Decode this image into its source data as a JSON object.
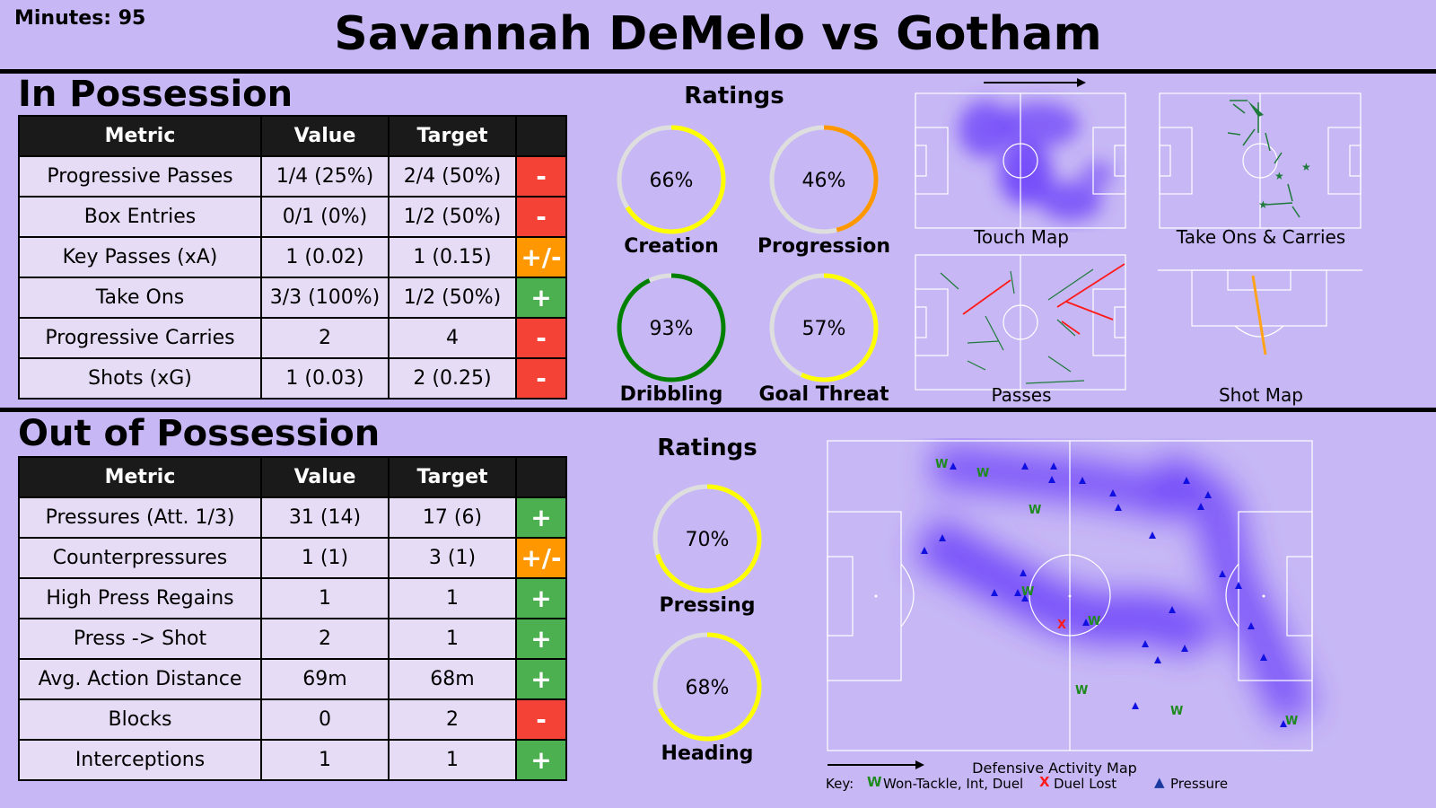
{
  "header": {
    "minutes": "Minutes: 95",
    "title": "Savannah DeMelo vs Gotham"
  },
  "colors": {
    "background": "#c7b8f5",
    "red": "#f44336",
    "orange": "#ff9800",
    "green": "#4caf50",
    "gauge_yellow": "#ffff00",
    "gauge_orange": "#ff9800",
    "gauge_green": "#008000",
    "heat": "#6a3dfa",
    "pressure_marker": "#1010e0",
    "won_marker": "#1e8a1e",
    "lost_marker": "#ff1a1a"
  },
  "in_possession": {
    "title": "In Possession",
    "headers": [
      "Metric",
      "Value",
      "Target",
      ""
    ],
    "rows": [
      {
        "metric": "Progressive Passes",
        "value": "1/4 (25%)",
        "target": "2/4 (50%)",
        "indicator": "-",
        "status": "red"
      },
      {
        "metric": "Box Entries",
        "value": "0/1 (0%)",
        "target": "1/2 (50%)",
        "indicator": "-",
        "status": "red"
      },
      {
        "metric": "Key Passes (xA)",
        "value": "1 (0.02)",
        "target": "1 (0.15)",
        "indicator": "+/-",
        "status": "orange"
      },
      {
        "metric": "Take Ons",
        "value": "3/3 (100%)",
        "target": "1/2 (50%)",
        "indicator": "+",
        "status": "green"
      },
      {
        "metric": "Progressive Carries",
        "value": "2",
        "target": "4",
        "indicator": "-",
        "status": "red"
      },
      {
        "metric": "Shots (xG)",
        "value": "1 (0.03)",
        "target": "2 (0.25)",
        "indicator": "-",
        "status": "red"
      }
    ],
    "ratings_title": "Ratings",
    "ratings": [
      {
        "label": "Creation",
        "value": "66%",
        "fraction": 0.66,
        "color": "#ffff00"
      },
      {
        "label": "Progression",
        "value": "46%",
        "fraction": 0.46,
        "color": "#ff9800"
      },
      {
        "label": "Dribbling",
        "value": "93%",
        "fraction": 0.93,
        "color": "#008000"
      },
      {
        "label": "Goal Threat",
        "value": "57%",
        "fraction": 0.57,
        "color": "#ffff00"
      }
    ],
    "maps": {
      "touch": "Touch Map",
      "takeons": "Take Ons & Carries",
      "passes": "Passes",
      "shots": "Shot Map"
    }
  },
  "out_possession": {
    "title": "Out of Possession",
    "headers": [
      "Metric",
      "Value",
      "Target",
      ""
    ],
    "rows": [
      {
        "metric": "Pressures (Att. 1/3)",
        "value": "31 (14)",
        "target": "17 (6)",
        "indicator": "+",
        "status": "green"
      },
      {
        "metric": "Counterpressures",
        "value": "1 (1)",
        "target": "3 (1)",
        "indicator": "+/-",
        "status": "orange"
      },
      {
        "metric": "High Press Regains",
        "value": "1",
        "target": "1",
        "indicator": "+",
        "status": "green"
      },
      {
        "metric": "Press -> Shot",
        "value": "2",
        "target": "1",
        "indicator": "+",
        "status": "green"
      },
      {
        "metric": "Avg. Action Distance",
        "value": "69m",
        "target": "68m",
        "indicator": "+",
        "status": "green"
      },
      {
        "metric": "Blocks",
        "value": "0",
        "target": "2",
        "indicator": "-",
        "status": "red"
      },
      {
        "metric": "Interceptions",
        "value": "1",
        "target": "1",
        "indicator": "+",
        "status": "green"
      }
    ],
    "ratings_title": "Ratings",
    "ratings": [
      {
        "label": "Pressing",
        "value": "70%",
        "fraction": 0.7,
        "color": "#ffff00"
      },
      {
        "label": "Heading",
        "value": "68%",
        "fraction": 0.68,
        "color": "#ffff00"
      }
    ],
    "defensive_map": {
      "label": "Defensive Activity Map",
      "key_prefix": "Key:",
      "key_won": "Won-Tackle, Int, Duel",
      "key_lost": "Duel Lost",
      "key_pressure": "Pressure",
      "won_symbol": "W",
      "lost_symbol": "X"
    }
  }
}
